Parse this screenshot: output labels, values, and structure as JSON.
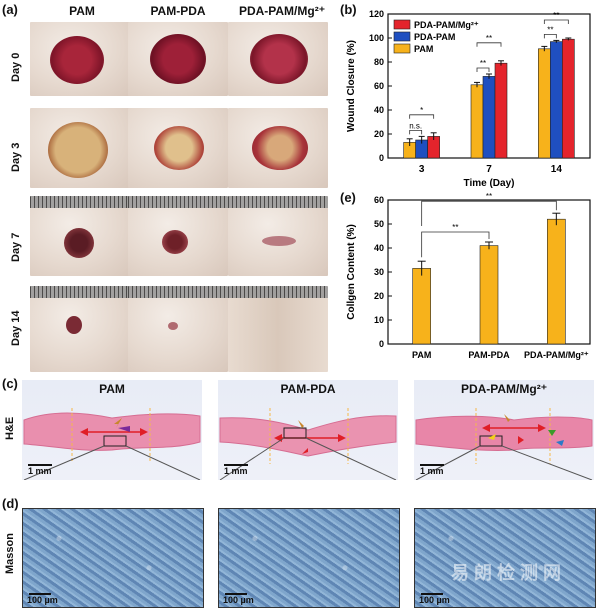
{
  "panels": {
    "a": "(a)",
    "b": "(b)",
    "c": "(c)",
    "d": "(d)",
    "e": "(e)"
  },
  "photo_columns": [
    "PAM",
    "PAM-PDA",
    "PDA-PAM/Mg²⁺"
  ],
  "photo_rows": [
    "Day 0",
    "Day 3",
    "Day 7",
    "Day 14"
  ],
  "histology": {
    "titles": [
      "PAM",
      "PAM-PDA",
      "PDA-PAM/Mg²⁺"
    ],
    "row_labels": [
      "H&E",
      "Masson"
    ],
    "scale_he": "1 mm",
    "scale_masson": "100 µm"
  },
  "watermark": "易 朗 检 测 网",
  "chart_data": [
    {
      "type": "bar",
      "panel": "b",
      "categories": [
        "3",
        "7",
        "14"
      ],
      "series": [
        {
          "name": "PAM",
          "color": "#f7b21b",
          "values": [
            13,
            61,
            91
          ],
          "errors": [
            3,
            2,
            2
          ]
        },
        {
          "name": "PDA-PAM",
          "color": "#1f4fc0",
          "values": [
            15,
            68,
            97
          ],
          "errors": [
            3,
            2,
            1
          ]
        },
        {
          "name": "PDA-PAM/Mg²⁺",
          "color": "#e4242c",
          "values": [
            18,
            79,
            99
          ],
          "errors": [
            3,
            2,
            1
          ]
        }
      ],
      "legend_order": [
        "PDA-PAM/Mg²⁺",
        "PDA-PAM",
        "PAM"
      ],
      "legend_position": "top-left",
      "xlabel": "Time (Day)",
      "ylabel": "Wound Closure (%)",
      "ylim": [
        0,
        120
      ],
      "yticks": [
        0,
        20,
        40,
        60,
        80,
        100,
        120
      ],
      "annotations": [
        {
          "group": "3",
          "labels": [
            "n.s.",
            "*"
          ]
        },
        {
          "group": "7",
          "labels": [
            "**",
            "**"
          ]
        },
        {
          "group": "14",
          "labels": [
            "**",
            "**"
          ]
        }
      ]
    },
    {
      "type": "bar",
      "panel": "e",
      "categories": [
        "PAM",
        "PAM-PDA",
        "PDA-PAM/Mg²⁺"
      ],
      "values": [
        31.5,
        41,
        52
      ],
      "errors": [
        3,
        1.5,
        2.5
      ],
      "color": "#f7b21b",
      "ylabel": "Collgen Content (%)",
      "ylim": [
        0,
        60
      ],
      "yticks": [
        0,
        10,
        20,
        30,
        40,
        50,
        60
      ],
      "annotations": [
        {
          "pair": [
            "PAM",
            "PAM-PDA"
          ],
          "label": "**"
        },
        {
          "pair": [
            "PAM",
            "PDA-PAM/Mg²⁺"
          ],
          "label": "**"
        }
      ]
    }
  ]
}
